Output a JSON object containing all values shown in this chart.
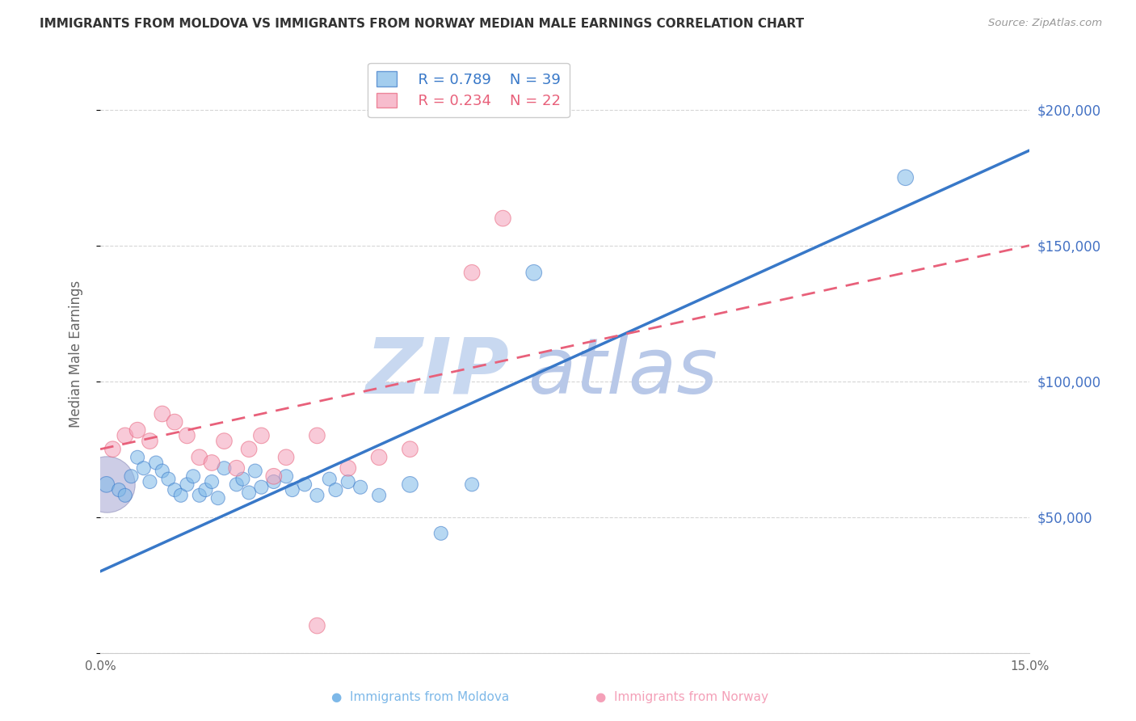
{
  "title": "IMMIGRANTS FROM MOLDOVA VS IMMIGRANTS FROM NORWAY MEDIAN MALE EARNINGS CORRELATION CHART",
  "source": "Source: ZipAtlas.com",
  "ylabel": "Median Male Earnings",
  "xlim": [
    0,
    0.15
  ],
  "ylim": [
    0,
    220000
  ],
  "yticks": [
    0,
    50000,
    100000,
    150000,
    200000
  ],
  "ytick_labels": [
    "",
    "$50,000",
    "$100,000",
    "$150,000",
    "$200,000"
  ],
  "xticks": [
    0.0,
    0.05,
    0.1,
    0.15
  ],
  "xtick_labels": [
    "0.0%",
    "",
    "",
    "15.0%"
  ],
  "legend_r1": "R = 0.789",
  "legend_n1": "N = 39",
  "legend_r2": "R = 0.234",
  "legend_n2": "N = 22",
  "blue_color": "#7db8e8",
  "pink_color": "#f4a0b8",
  "blue_line_color": "#3878c8",
  "pink_line_color": "#e8607a",
  "blue_scatter_x": [
    0.001,
    0.003,
    0.004,
    0.005,
    0.006,
    0.007,
    0.008,
    0.009,
    0.01,
    0.011,
    0.012,
    0.013,
    0.014,
    0.015,
    0.016,
    0.017,
    0.018,
    0.019,
    0.02,
    0.022,
    0.023,
    0.024,
    0.025,
    0.026,
    0.028,
    0.03,
    0.031,
    0.033,
    0.035,
    0.037,
    0.038,
    0.04,
    0.042,
    0.045,
    0.05,
    0.055,
    0.06,
    0.07,
    0.13
  ],
  "blue_scatter_y": [
    62000,
    60000,
    58000,
    65000,
    72000,
    68000,
    63000,
    70000,
    67000,
    64000,
    60000,
    58000,
    62000,
    65000,
    58000,
    60000,
    63000,
    57000,
    68000,
    62000,
    64000,
    59000,
    67000,
    61000,
    63000,
    65000,
    60000,
    62000,
    58000,
    64000,
    60000,
    63000,
    61000,
    58000,
    62000,
    44000,
    62000,
    140000,
    175000
  ],
  "blue_scatter_sizes": [
    200,
    150,
    150,
    150,
    150,
    150,
    150,
    150,
    150,
    150,
    150,
    150,
    150,
    150,
    150,
    150,
    150,
    150,
    150,
    150,
    150,
    150,
    150,
    150,
    150,
    150,
    150,
    150,
    150,
    150,
    150,
    150,
    150,
    150,
    200,
    150,
    150,
    200,
    200
  ],
  "blue_large_x": [
    0.001
  ],
  "blue_large_y": [
    62000
  ],
  "blue_large_size": [
    2000
  ],
  "pink_scatter_x": [
    0.002,
    0.004,
    0.006,
    0.008,
    0.01,
    0.012,
    0.014,
    0.016,
    0.018,
    0.02,
    0.022,
    0.024,
    0.026,
    0.028,
    0.03,
    0.035,
    0.04,
    0.045,
    0.05,
    0.06,
    0.065,
    0.035
  ],
  "pink_scatter_y": [
    75000,
    80000,
    82000,
    78000,
    88000,
    85000,
    80000,
    72000,
    70000,
    78000,
    68000,
    75000,
    80000,
    65000,
    72000,
    80000,
    68000,
    72000,
    75000,
    140000,
    160000,
    10000
  ],
  "pink_scatter_sizes": [
    200,
    200,
    200,
    200,
    200,
    200,
    200,
    200,
    200,
    200,
    200,
    200,
    200,
    200,
    200,
    200,
    200,
    200,
    200,
    200,
    200,
    200
  ],
  "blue_line_x0": 0.0,
  "blue_line_y0": 30000,
  "blue_line_x1": 0.15,
  "blue_line_y1": 185000,
  "pink_line_x0": 0.0,
  "pink_line_y0": 75000,
  "pink_line_x1": 0.15,
  "pink_line_y1": 150000,
  "background_color": "#ffffff",
  "grid_color": "#cccccc",
  "title_color": "#333333",
  "axis_label_color": "#666666",
  "right_axis_color": "#4472c4",
  "watermark_zip_color": "#c8d8f0",
  "watermark_atlas_color": "#b8c8e8"
}
